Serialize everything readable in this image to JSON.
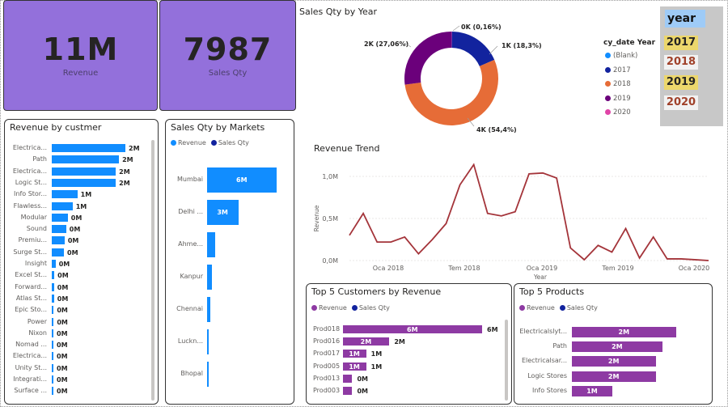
{
  "kpi": {
    "revenue": {
      "value": "11M",
      "label": "Revenue"
    },
    "sales_qty": {
      "value": "7987",
      "label": "Sales Qty"
    }
  },
  "donut": {
    "title": "Sales Qty by Year",
    "legend_title": "cy_date Year",
    "legend_items": [
      {
        "label": "(Blank)",
        "color": "#118DFF"
      },
      {
        "label": "2017",
        "color": "#12239E"
      },
      {
        "label": "2018",
        "color": "#E66C37"
      },
      {
        "label": "2019",
        "color": "#6B007B"
      },
      {
        "label": "2020",
        "color": "#E044A7"
      }
    ],
    "slice_labels": [
      "0K (0,16%)",
      "1K (18,3%)",
      "4K (54,4%)",
      "2K (27,06%)"
    ]
  },
  "slicer": {
    "header": "year",
    "items": [
      "2017",
      "2018",
      "2019",
      "2020"
    ],
    "colors": {
      "selected_bg": "#ecd76c",
      "unselected_bg": "#f2f2f2",
      "text_selected": "#252423",
      "text_unselected": "#a0412a"
    }
  },
  "customers": {
    "title": "Revenue by custmer",
    "names": [
      "Electrica...",
      "Path",
      "Electrica...",
      "Logic St...",
      "Info Stor...",
      "Flawless...",
      "Modular",
      "Sound",
      "Premiu...",
      "Surge St...",
      "Insight",
      "Excel St...",
      "Forward...",
      "Atlas St...",
      "Epic Sto...",
      "Power",
      "Nixon",
      "Nomad ...",
      "Electrica...",
      "Unity St...",
      "Integrati...",
      "Surface ..."
    ],
    "labels": [
      "2M",
      "2M",
      "2M",
      "2M",
      "1M",
      "1M",
      "0M",
      "0M",
      "0M",
      "0M",
      "0M",
      "0M",
      "0M",
      "0M",
      "0M",
      "0M",
      "0M",
      "0M",
      "0M",
      "0M",
      "0M",
      "0M"
    ]
  },
  "markets": {
    "title": "Sales Qty by Markets",
    "legend": [
      {
        "label": "Revenue",
        "color": "#118DFF"
      },
      {
        "label": "Sales Qty",
        "color": "#12239E"
      }
    ],
    "names": [
      "Mumbai",
      "Delhi ...",
      "Ahme...",
      "Kanpur",
      "Chennai",
      "Luckn...",
      "Bhopal"
    ],
    "labels": [
      "6M",
      "3M",
      "",
      "",
      "",
      "",
      ""
    ]
  },
  "trend": {
    "title": "Revenue Trend",
    "ylabel": "Revenue",
    "xlabel": "Year",
    "yticks": [
      "1,0M",
      "0,5M",
      "0,0M"
    ],
    "xticks": [
      "Oca 2018",
      "Tem 2018",
      "Oca 2019",
      "Tem 2019",
      "Oca 2020"
    ]
  },
  "top_customers": {
    "title": "Top 5 Customers by Revenue",
    "legend": [
      {
        "label": "Revenue",
        "color": "#8E3AA3"
      },
      {
        "label": "Sales Qty",
        "color": "#12239E"
      }
    ],
    "names": [
      "Prod018",
      "Prod016",
      "Prod017",
      "Prod005",
      "Prod013",
      "Prod003"
    ],
    "inner": [
      "6M",
      "2M",
      "1M",
      "1M",
      "",
      ""
    ],
    "outer": [
      "6M",
      "2M",
      "1M",
      "1M",
      "0M",
      "0M"
    ]
  },
  "top_products": {
    "title": "Top 5 Products",
    "legend": [
      {
        "label": "Revenue",
        "color": "#8E3AA3"
      },
      {
        "label": "Sales Qty",
        "color": "#12239E"
      }
    ],
    "names": [
      "Electricalslyt...",
      "Path",
      "Electricalsar...",
      "Logic Stores",
      "Info Stores"
    ],
    "labels": [
      "2M",
      "2M",
      "2M",
      "2M",
      "1M"
    ]
  },
  "chart_data": [
    {
      "type": "pie",
      "title": "Sales Qty by Year",
      "categories": [
        "(Blank)",
        "2017",
        "2018",
        "2019"
      ],
      "values": [
        0.16,
        18.3,
        54.4,
        27.06
      ],
      "colors": [
        "#E044A7",
        "#12239E",
        "#E66C37",
        "#6B007B"
      ]
    },
    {
      "type": "bar",
      "title": "Revenue by custmer",
      "values": [
        2.3,
        2.1,
        2.0,
        2.0,
        0.8,
        0.65,
        0.5,
        0.45,
        0.4,
        0.38,
        0.12,
        0.08,
        0.07,
        0.07,
        0.06,
        0.06,
        0.05,
        0.05,
        0.04,
        0.04,
        0.03,
        0.02
      ]
    },
    {
      "type": "bar",
      "title": "Sales Qty by Markets",
      "values": [
        6.0,
        2.7,
        0.7,
        0.45,
        0.3,
        0.15,
        0.05
      ]
    },
    {
      "type": "line",
      "title": "Revenue Trend",
      "ylabel": "Revenue",
      "xlabel": "Year",
      "ylim": [
        0,
        1.0
      ],
      "values": [
        0.3,
        0.56,
        0.22,
        0.22,
        0.28,
        0.08,
        0.25,
        0.44,
        0.9,
        1.14,
        0.56,
        0.53,
        0.58,
        1.03,
        1.04,
        0.98,
        0.15,
        0.01,
        0.18,
        0.1,
        0.38,
        0.03,
        0.28,
        0.02,
        0.02,
        0.01,
        0.0
      ]
    },
    {
      "type": "bar",
      "title": "Top 5 Customers by Revenue",
      "values": [
        6.0,
        2.0,
        1.0,
        1.0,
        0.4,
        0.4
      ]
    },
    {
      "type": "bar",
      "title": "Top 5 Products",
      "values": [
        2.3,
        2.0,
        1.85,
        1.85,
        0.9
      ]
    }
  ]
}
